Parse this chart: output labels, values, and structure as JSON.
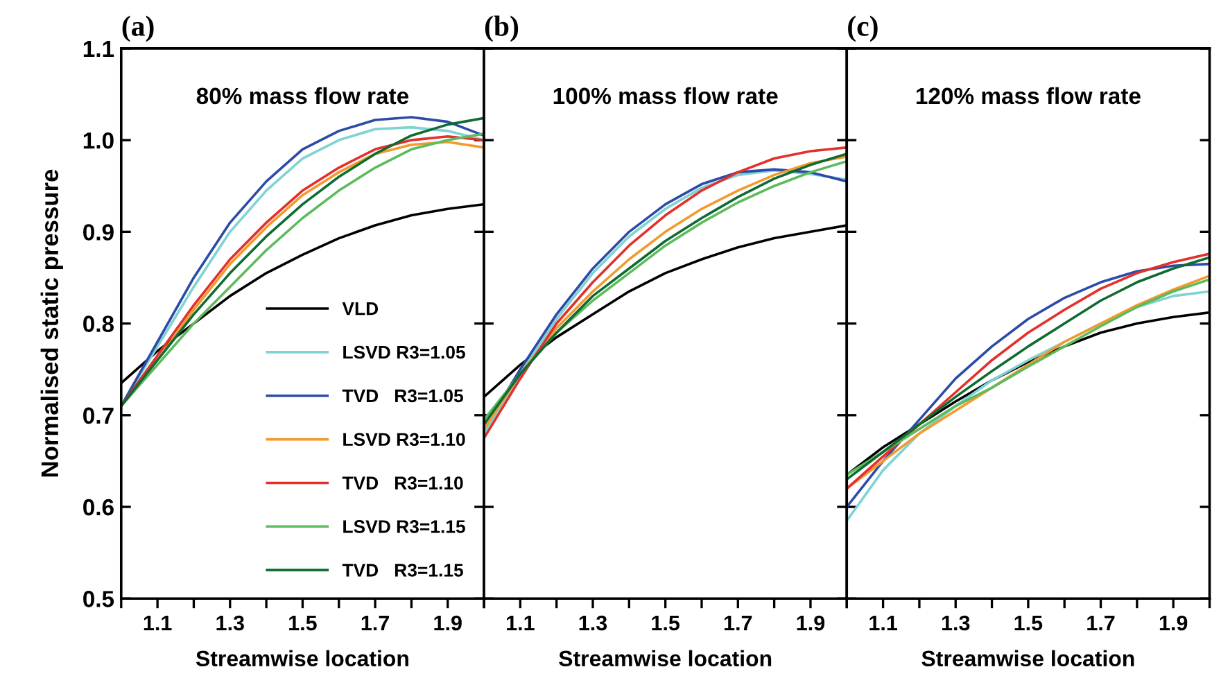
{
  "chart_data": [
    {
      "type": "line",
      "title": "(a)",
      "subtitle": "80% mass flow rate",
      "xlabel": "Streamwise location",
      "ylabel": "Normalised static pressure",
      "legend": "bottom right",
      "grid": false,
      "x": [
        1.0,
        1.1,
        1.2,
        1.3,
        1.4,
        1.5,
        1.6,
        1.7,
        1.8,
        1.9,
        2.0
      ],
      "xlim": [
        1.0,
        2.0
      ],
      "xticks": [
        {
          "value": 1.0,
          "label": null
        },
        1.1,
        {
          "value": 1.2,
          "label": null
        },
        1.3,
        {
          "value": 1.4,
          "label": null
        },
        1.5,
        {
          "value": 1.6,
          "label": null
        },
        1.7,
        {
          "value": 1.8,
          "label": null
        },
        1.9,
        {
          "value": 2.0,
          "label": null
        }
      ],
      "ylim": [
        0.5,
        1.1
      ],
      "yticks": [
        0.5,
        0.6,
        0.7,
        0.8,
        0.9,
        {
          "value": 1.0,
          "label": "1.0"
        },
        1.1
      ],
      "series": [
        {
          "name": "VLD",
          "color": "#000000",
          "values": [
            0.735,
            0.77,
            0.8,
            0.83,
            0.855,
            0.875,
            0.893,
            0.907,
            0.918,
            0.925,
            0.93
          ]
        },
        {
          "name": "LSVD R3=1.05",
          "color": "#7fd3d3",
          "values": [
            0.71,
            0.775,
            0.84,
            0.9,
            0.945,
            0.98,
            1.0,
            1.012,
            1.014,
            1.01,
            1.0
          ]
        },
        {
          "name": "TVD   R3=1.05",
          "color": "#2b4ba8",
          "values": [
            0.71,
            0.78,
            0.85,
            0.91,
            0.955,
            0.99,
            1.01,
            1.022,
            1.025,
            1.02,
            1.005
          ]
        },
        {
          "name": "LSVD R3=1.10",
          "color": "#f39a2e",
          "values": [
            0.71,
            0.76,
            0.815,
            0.865,
            0.905,
            0.94,
            0.965,
            0.985,
            0.995,
            0.998,
            0.992
          ]
        },
        {
          "name": "TVD   R3=1.10",
          "color": "#e3302b",
          "values": [
            0.71,
            0.765,
            0.82,
            0.87,
            0.91,
            0.945,
            0.97,
            0.99,
            1.0,
            1.004,
            1.0
          ]
        },
        {
          "name": "LSVD R3=1.15",
          "color": "#5dbb5d",
          "values": [
            0.71,
            0.755,
            0.8,
            0.84,
            0.88,
            0.915,
            0.945,
            0.97,
            0.99,
            1.0,
            1.007
          ]
        },
        {
          "name": "TVD   R3=1.15",
          "color": "#0f6b32",
          "values": [
            0.71,
            0.76,
            0.81,
            0.855,
            0.895,
            0.93,
            0.96,
            0.985,
            1.005,
            1.017,
            1.024
          ]
        }
      ]
    },
    {
      "type": "line",
      "title": "(b)",
      "subtitle": "100% mass flow rate",
      "xlabel": "Streamwise location",
      "tick_labels": "x",
      "grid": false,
      "x": [
        1.0,
        1.1,
        1.2,
        1.3,
        1.4,
        1.5,
        1.6,
        1.7,
        1.8,
        1.9,
        2.0
      ],
      "xlim": [
        1.0,
        2.0
      ],
      "xticks": [
        {
          "value": 1.0,
          "label": null
        },
        1.1,
        {
          "value": 1.2,
          "label": null
        },
        1.3,
        {
          "value": 1.4,
          "label": null
        },
        1.5,
        {
          "value": 1.6,
          "label": null
        },
        1.7,
        {
          "value": 1.8,
          "label": null
        },
        1.9,
        {
          "value": 2.0,
          "label": null
        }
      ],
      "ylim": [
        0.5,
        1.1
      ],
      "yticks": [
        {
          "value": 0.5,
          "label": null
        },
        {
          "value": 0.6,
          "label": null
        },
        {
          "value": 0.7,
          "label": null
        },
        {
          "value": 0.8,
          "label": null
        },
        {
          "value": 0.9,
          "label": null
        },
        {
          "value": 1.0,
          "label": null
        },
        {
          "value": 1.1,
          "label": null
        }
      ],
      "series": [
        {
          "color": "#000000",
          "values": [
            0.72,
            0.755,
            0.785,
            0.81,
            0.835,
            0.855,
            0.87,
            0.883,
            0.893,
            0.9,
            0.907
          ]
        },
        {
          "color": "#7fd3d3",
          "values": [
            0.68,
            0.745,
            0.805,
            0.855,
            0.895,
            0.925,
            0.948,
            0.962,
            0.967,
            0.963,
            0.957
          ]
        },
        {
          "color": "#2b4ba8",
          "values": [
            0.685,
            0.75,
            0.81,
            0.86,
            0.9,
            0.93,
            0.952,
            0.965,
            0.968,
            0.965,
            0.955
          ]
        },
        {
          "color": "#f39a2e",
          "values": [
            0.685,
            0.745,
            0.795,
            0.835,
            0.87,
            0.9,
            0.925,
            0.945,
            0.962,
            0.975,
            0.982
          ]
        },
        {
          "color": "#e3302b",
          "values": [
            0.675,
            0.74,
            0.8,
            0.845,
            0.885,
            0.918,
            0.945,
            0.965,
            0.98,
            0.988,
            0.992
          ]
        },
        {
          "color": "#5dbb5d",
          "values": [
            0.695,
            0.745,
            0.79,
            0.825,
            0.855,
            0.885,
            0.91,
            0.932,
            0.95,
            0.965,
            0.977
          ]
        },
        {
          "color": "#0f6b32",
          "values": [
            0.69,
            0.745,
            0.79,
            0.83,
            0.86,
            0.89,
            0.915,
            0.938,
            0.958,
            0.973,
            0.985
          ]
        }
      ]
    },
    {
      "type": "line",
      "title": "(c)",
      "subtitle": "120% mass flow rate",
      "xlabel": "Streamwise location",
      "tick_labels": "x",
      "grid": false,
      "x": [
        1.0,
        1.1,
        1.2,
        1.3,
        1.4,
        1.5,
        1.6,
        1.7,
        1.8,
        1.9,
        2.0
      ],
      "xlim": [
        1.0,
        2.0
      ],
      "xticks": [
        {
          "value": 1.0,
          "label": null
        },
        1.1,
        {
          "value": 1.2,
          "label": null
        },
        1.3,
        {
          "value": 1.4,
          "label": null
        },
        1.5,
        {
          "value": 1.6,
          "label": null
        },
        1.7,
        {
          "value": 1.8,
          "label": null
        },
        1.9,
        {
          "value": 2.0,
          "label": null
        }
      ],
      "ylim": [
        0.5,
        1.1
      ],
      "yticks": [
        {
          "value": 0.5,
          "label": null
        },
        {
          "value": 0.6,
          "label": null
        },
        {
          "value": 0.7,
          "label": null
        },
        {
          "value": 0.8,
          "label": null
        },
        {
          "value": 0.9,
          "label": null
        },
        {
          "value": 1.0,
          "label": null
        },
        {
          "value": 1.1,
          "label": null
        }
      ],
      "series": [
        {
          "color": "#000000",
          "values": [
            0.635,
            0.665,
            0.69,
            0.715,
            0.738,
            0.758,
            0.775,
            0.79,
            0.8,
            0.807,
            0.812
          ]
        },
        {
          "color": "#7fd3d3",
          "values": [
            0.585,
            0.64,
            0.68,
            0.71,
            0.738,
            0.76,
            0.78,
            0.8,
            0.818,
            0.83,
            0.835
          ]
        },
        {
          "color": "#2b4ba8",
          "values": [
            0.6,
            0.65,
            0.695,
            0.74,
            0.775,
            0.805,
            0.828,
            0.845,
            0.857,
            0.863,
            0.865
          ]
        },
        {
          "color": "#f39a2e",
          "values": [
            0.62,
            0.65,
            0.68,
            0.705,
            0.73,
            0.755,
            0.78,
            0.8,
            0.82,
            0.837,
            0.852
          ]
        },
        {
          "color": "#e3302b",
          "values": [
            0.62,
            0.655,
            0.69,
            0.725,
            0.76,
            0.79,
            0.815,
            0.838,
            0.855,
            0.867,
            0.876
          ]
        },
        {
          "color": "#5dbb5d",
          "values": [
            0.635,
            0.66,
            0.685,
            0.71,
            0.73,
            0.753,
            0.775,
            0.797,
            0.818,
            0.835,
            0.848
          ]
        },
        {
          "color": "#0f6b32",
          "values": [
            0.63,
            0.66,
            0.69,
            0.72,
            0.748,
            0.775,
            0.8,
            0.825,
            0.845,
            0.86,
            0.872
          ]
        }
      ]
    }
  ]
}
